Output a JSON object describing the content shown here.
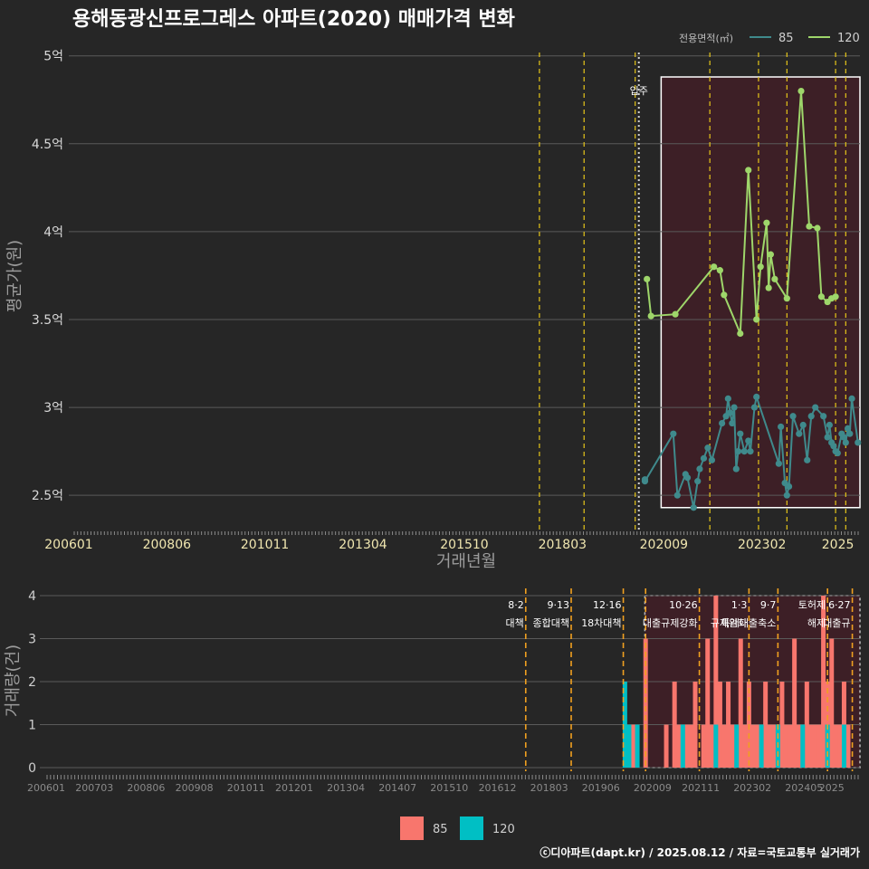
{
  "title": "용해동광신프로그레스 아파트(2020) 매매가격 변화",
  "footer": "ⓒ디아파트(dapt.kr) / 2025.08.12 / 자료=국토교통부 실거래가",
  "colors": {
    "s85_price": "#3f8a8c",
    "s120_price": "#9ed66a",
    "s85_bar": "#f8766d",
    "s120_bar": "#00bfc4",
    "highlight": "#3d1f26",
    "event_line": "#e6c619"
  },
  "chart_data": [
    {
      "type": "line",
      "title": "용해동광신프로그레스 아파트(2020) 매매가격 변화",
      "xlabel": "거래년월",
      "ylabel": "평균가(원)",
      "ylim": [
        2.3,
        5.05
      ],
      "yticks": [
        2.5,
        3,
        3.5,
        4,
        4.5,
        5
      ],
      "ytick_labels": [
        "2.5억",
        "3억",
        "3.5억",
        "4억",
        "4.5억",
        "5억"
      ],
      "xlim": [
        2006.0,
        2025.5
      ],
      "xticks": [
        "200601",
        "200806",
        "201011",
        "201304",
        "201510",
        "201803",
        "202009",
        "202302",
        "2025"
      ],
      "legend": {
        "title": "전용면적(㎡)",
        "position": "top-right"
      },
      "highlight_period": [
        2020.6,
        2025.5
      ],
      "events": [
        {
          "x": 2017.6,
          "label": ""
        },
        {
          "x": 2018.7,
          "label": ""
        },
        {
          "x": 2019.96,
          "label": ""
        },
        {
          "x": 2020.05,
          "label": "입주",
          "dotted": true
        },
        {
          "x": 2021.8,
          "label": ""
        },
        {
          "x": 2023.0,
          "label": ""
        },
        {
          "x": 2023.7,
          "label": ""
        },
        {
          "x": 2024.9,
          "label": ""
        },
        {
          "x": 2025.15,
          "label": ""
        }
      ],
      "series": [
        {
          "name": "85",
          "x": [
            2020.2,
            2020.2,
            2020.9,
            2021.0,
            2021.2,
            2021.25,
            2021.4,
            2021.5,
            2021.55,
            2021.65,
            2021.75,
            2021.85,
            2022.1,
            2022.2,
            2022.25,
            2022.3,
            2022.35,
            2022.4,
            2022.45,
            2022.5,
            2022.55,
            2022.65,
            2022.75,
            2022.8,
            2022.9,
            2022.95,
            2023.5,
            2023.55,
            2023.65,
            2023.7,
            2023.75,
            2023.85,
            2024.0,
            2024.1,
            2024.2,
            2024.3,
            2024.4,
            2024.6,
            2024.7,
            2024.75,
            2024.8,
            2024.85,
            2024.9,
            2024.95,
            2025.05,
            2025.1,
            2025.15,
            2025.2,
            2025.25,
            2025.3,
            2025.45
          ],
          "values": [
            2.59,
            2.58,
            2.85,
            2.5,
            2.62,
            2.6,
            2.43,
            2.58,
            2.65,
            2.71,
            2.77,
            2.7,
            2.91,
            2.95,
            3.05,
            2.97,
            2.91,
            3.0,
            2.65,
            2.75,
            2.85,
            2.75,
            2.81,
            2.75,
            3.0,
            3.06,
            2.68,
            2.89,
            2.57,
            2.5,
            2.55,
            2.95,
            2.85,
            2.9,
            2.7,
            2.95,
            3.0,
            2.95,
            2.83,
            2.9,
            2.8,
            2.78,
            2.75,
            2.74,
            2.85,
            2.83,
            2.8,
            2.88,
            2.85,
            3.05,
            2.8
          ]
        },
        {
          "name": "120",
          "x": [
            2020.25,
            2020.35,
            2020.95,
            2021.9,
            2022.05,
            2022.15,
            2022.55,
            2022.75,
            2022.95,
            2023.05,
            2023.2,
            2023.25,
            2023.3,
            2023.4,
            2023.7,
            2024.05,
            2024.25,
            2024.45,
            2024.55,
            2024.7,
            2024.8,
            2024.9
          ],
          "values": [
            3.73,
            3.52,
            3.53,
            3.8,
            3.78,
            3.64,
            3.42,
            4.35,
            3.5,
            3.8,
            4.05,
            3.68,
            3.87,
            3.73,
            3.62,
            4.8,
            4.03,
            4.02,
            3.63,
            3.6,
            3.62,
            3.63
          ]
        }
      ]
    },
    {
      "type": "bar",
      "xlabel": "",
      "ylabel": "거래량(건)",
      "ylim": [
        0,
        4
      ],
      "yticks": [
        0,
        1,
        2,
        3,
        4
      ],
      "xticks": [
        "200601",
        "200703",
        "200806",
        "200908",
        "201011",
        "201201",
        "201304",
        "201407",
        "201510",
        "201612",
        "201803",
        "201906",
        "202009",
        "202111",
        "202302",
        "202405",
        "2025"
      ],
      "legend": {
        "position": "bottom"
      },
      "events": [
        {
          "x": 2017.6,
          "label": "8·2 대책"
        },
        {
          "x": 2018.7,
          "label": "9·13 종합대책"
        },
        {
          "x": 2019.96,
          "label": "12·16 18차대책"
        },
        {
          "x": 2020.5,
          "label": ""
        },
        {
          "x": 2021.8,
          "label": "10·26 대출규제강화"
        },
        {
          "x": 2023.0,
          "label": "1·3 규제완화"
        },
        {
          "x": 2023.7,
          "label": "9·7 특례대출축소"
        },
        {
          "x": 2024.9,
          "label": "토허제 해제"
        },
        {
          "x": 2025.5,
          "label": "6·27 대출규"
        }
      ],
      "highlight_period": [
        2020.6,
        2025.5
      ],
      "series": [
        {
          "name": "85",
          "x": [
            2020.2,
            2020.5,
            2021.0,
            2021.2,
            2021.3,
            2021.5,
            2021.6,
            2021.7,
            2021.9,
            2022.0,
            2022.1,
            2022.2,
            2022.3,
            2022.4,
            2022.5,
            2022.6,
            2022.8,
            2022.9,
            2023.0,
            2023.1,
            2023.2,
            2023.3,
            2023.4,
            2023.5,
            2023.6,
            2023.8,
            2023.9,
            2024.0,
            2024.1,
            2024.2,
            2024.3,
            2024.4,
            2024.5,
            2024.6,
            2024.7,
            2024.8,
            2024.9,
            2025.0,
            2025.1,
            2025.2,
            2025.3,
            2025.4
          ],
          "values": [
            1,
            3,
            1,
            2,
            1,
            1,
            1,
            2,
            1,
            3,
            1,
            4,
            2,
            1,
            2,
            1,
            3,
            1,
            2,
            1,
            1,
            1,
            2,
            1,
            1,
            2,
            1,
            1,
            3,
            1,
            1,
            2,
            1,
            1,
            1,
            4,
            2,
            3,
            1,
            1,
            2,
            1
          ]
        },
        {
          "name": "120",
          "x": [
            2020.0,
            2020.1,
            2020.3,
            2021.4,
            2022.2,
            2022.7,
            2023.3,
            2023.7,
            2024.3,
            2024.9,
            2025.3
          ],
          "values": [
            2,
            1,
            1,
            1,
            1,
            1,
            1,
            1,
            1,
            1,
            1
          ]
        }
      ]
    }
  ]
}
